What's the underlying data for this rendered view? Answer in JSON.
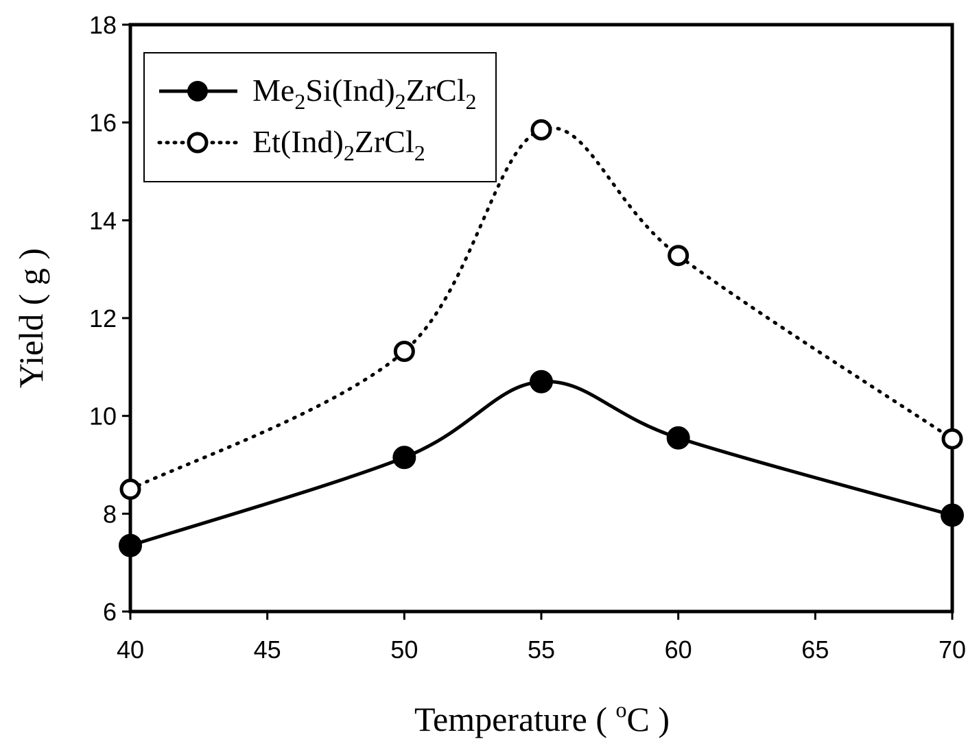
{
  "chart_data": {
    "type": "line",
    "title": "",
    "xlabel": "Temperature ( °C )",
    "xlabel_parts": {
      "prefix": "Temperature ( ",
      "sup": "o",
      "suffix": "C )"
    },
    "ylabel": "Yield ( g )",
    "xlim": [
      40,
      70
    ],
    "ylim": [
      6,
      18
    ],
    "xticks": [
      40,
      45,
      50,
      55,
      60,
      65,
      70
    ],
    "yticks": [
      6,
      8,
      10,
      12,
      14,
      16,
      18
    ],
    "grid": false,
    "legend_position": "top-left",
    "series": [
      {
        "name": "Me2Si(Ind)2ZrCl2",
        "label_parts": [
          [
            "Me",
            ""
          ],
          [
            "2",
            "sub"
          ],
          [
            "Si(Ind)",
            ""
          ],
          [
            "2",
            "sub"
          ],
          [
            "ZrCl",
            ""
          ],
          [
            "2",
            "sub"
          ]
        ],
        "line_style": "solid",
        "marker": "filled-circle",
        "color": "#000000",
        "x": [
          40,
          50,
          55,
          60,
          70
        ],
        "values": [
          7.35,
          9.15,
          10.7,
          9.55,
          7.97
        ]
      },
      {
        "name": "Et(Ind)2ZrCl2",
        "label_parts": [
          [
            "Et(Ind)",
            ""
          ],
          [
            "2",
            "sub"
          ],
          [
            "ZrCl",
            ""
          ],
          [
            "2",
            "sub"
          ]
        ],
        "line_style": "dotted",
        "marker": "open-circle",
        "color": "#000000",
        "x": [
          40,
          50,
          55,
          60,
          70
        ],
        "values": [
          8.5,
          11.32,
          15.85,
          13.28,
          9.53
        ]
      }
    ]
  }
}
